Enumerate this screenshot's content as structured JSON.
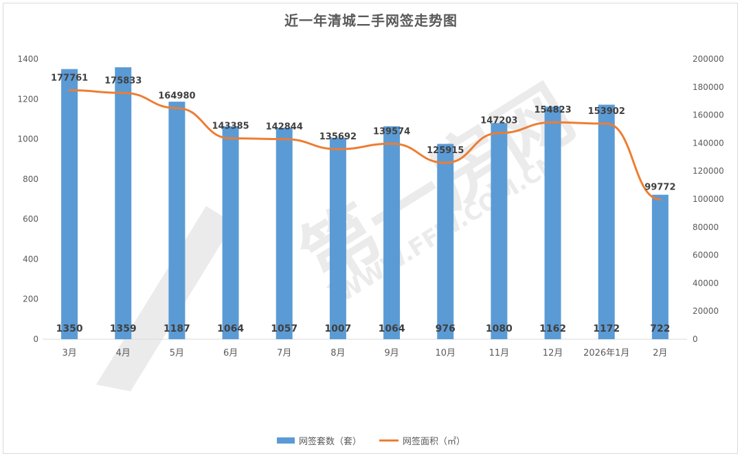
{
  "chart_data": {
    "type": "bar",
    "title": "近一年清城二手网签走势图",
    "categories": [
      "3月",
      "4月",
      "5月",
      "6月",
      "7月",
      "8月",
      "9月",
      "10月",
      "11月",
      "12月",
      "2026年1月",
      "2月"
    ],
    "series": [
      {
        "name": "网签套数（套）",
        "type": "bar",
        "axis": "left",
        "color": "#5b9bd5",
        "values": [
          1350,
          1359,
          1187,
          1064,
          1057,
          1007,
          1064,
          976,
          1080,
          1162,
          1172,
          722
        ]
      },
      {
        "name": "网签面积（㎡）",
        "type": "line",
        "axis": "right",
        "color": "#ed7d31",
        "values": [
          177761,
          175833,
          164980,
          143385,
          142844,
          135692,
          139574,
          125915,
          147203,
          154823,
          153902,
          99772
        ]
      }
    ],
    "y_left": {
      "range": [
        0,
        1400
      ],
      "ticks": [
        "0",
        "200",
        "400",
        "600",
        "800",
        "1000",
        "1200",
        "1400"
      ]
    },
    "y_right": {
      "range": [
        0,
        200000
      ],
      "ticks": [
        "0",
        "20000",
        "40000",
        "60000",
        "80000",
        "100000",
        "120000",
        "140000",
        "160000",
        "180000",
        "200000"
      ]
    },
    "grid": false,
    "legend_position": "bottom"
  },
  "watermark": {
    "text": "第一房网",
    "url_text": "WWW.FFW.COM.CN"
  }
}
